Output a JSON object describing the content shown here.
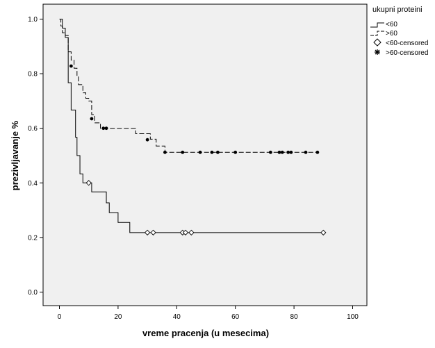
{
  "chart_data": {
    "type": "line",
    "subtype": "kaplan-meier",
    "xlabel": "vreme pracenja (u mesecima)",
    "ylabel": "prezivljavanje %",
    "xlim": [
      0,
      100
    ],
    "ylim": [
      0,
      1
    ],
    "xticks": [
      "0",
      "20",
      "40",
      "60",
      "80",
      "100"
    ],
    "yticks": [
      "0.0",
      "0.2",
      "0.4",
      "0.6",
      "0.8",
      "1.0"
    ],
    "grid": false,
    "background_color": "#f0f0f0",
    "legend": {
      "title": "ukupni proteini",
      "placement": "right",
      "entries": [
        "<60",
        ">60",
        "<60-censored",
        ">60-censored"
      ]
    },
    "series": [
      {
        "name": "<60",
        "style": "solid",
        "steps": [
          [
            0,
            1.0
          ],
          [
            1,
            0.967
          ],
          [
            2,
            0.933
          ],
          [
            3,
            0.767
          ],
          [
            4,
            0.667
          ],
          [
            5.5,
            0.567
          ],
          [
            6,
            0.5
          ],
          [
            7,
            0.433
          ],
          [
            8,
            0.4
          ],
          [
            11,
            0.367
          ],
          [
            16,
            0.327
          ],
          [
            17,
            0.291
          ],
          [
            20,
            0.255
          ],
          [
            24,
            0.218
          ],
          [
            90,
            0.218
          ]
        ],
        "censored": [
          [
            10,
            0.4
          ],
          [
            30,
            0.218
          ],
          [
            32,
            0.218
          ],
          [
            42,
            0.218
          ],
          [
            43,
            0.218
          ],
          [
            45,
            0.218
          ],
          [
            90,
            0.218
          ]
        ]
      },
      {
        "name": ">60",
        "style": "dashed",
        "steps": [
          [
            0,
            1.0
          ],
          [
            0.5,
            0.975
          ],
          [
            1,
            0.95
          ],
          [
            2,
            0.94
          ],
          [
            3,
            0.88
          ],
          [
            4,
            0.85
          ],
          [
            5,
            0.82
          ],
          [
            6,
            0.79
          ],
          [
            6.5,
            0.76
          ],
          [
            8,
            0.73
          ],
          [
            9,
            0.71
          ],
          [
            10,
            0.7
          ],
          [
            11,
            0.65
          ],
          [
            12,
            0.62
          ],
          [
            14,
            0.6
          ],
          [
            26,
            0.58
          ],
          [
            31,
            0.56
          ],
          [
            33,
            0.535
          ],
          [
            36,
            0.512
          ],
          [
            88,
            0.512
          ]
        ],
        "censored": [
          [
            4,
            0.828
          ],
          [
            11,
            0.635
          ],
          [
            15,
            0.6
          ],
          [
            16,
            0.6
          ],
          [
            30,
            0.558
          ],
          [
            36,
            0.512
          ],
          [
            42,
            0.512
          ],
          [
            48,
            0.512
          ],
          [
            52,
            0.512
          ],
          [
            54,
            0.512
          ],
          [
            60,
            0.512
          ],
          [
            72,
            0.512
          ],
          [
            75,
            0.512
          ],
          [
            76,
            0.512
          ],
          [
            78,
            0.512
          ],
          [
            79,
            0.512
          ],
          [
            84,
            0.512
          ],
          [
            88,
            0.512
          ]
        ]
      }
    ]
  }
}
